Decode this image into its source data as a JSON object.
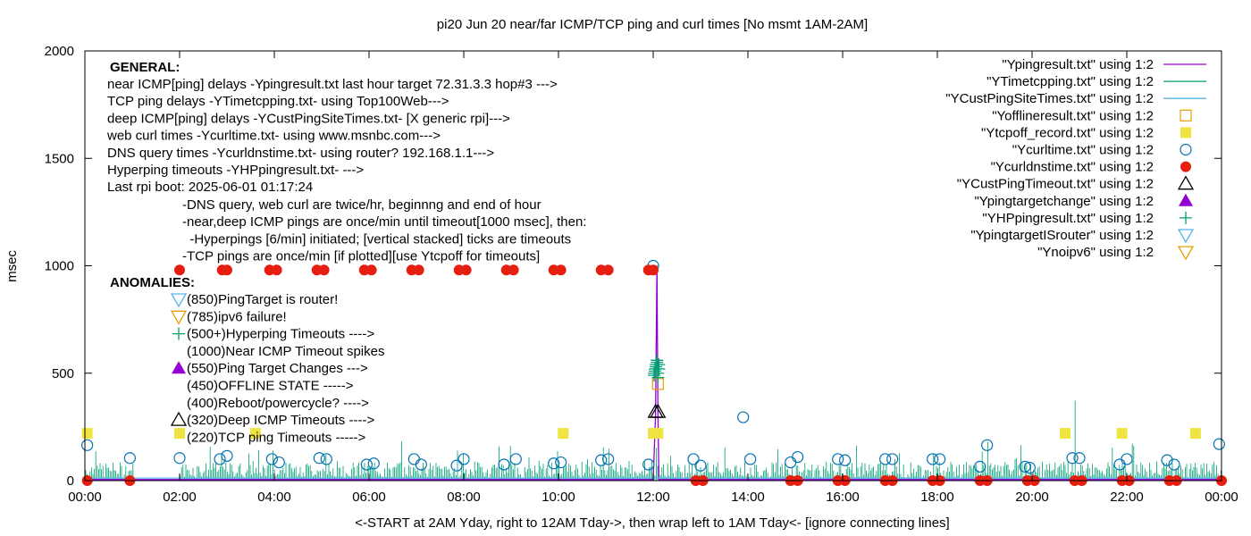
{
  "chart_data": {
    "type": "scatter",
    "title": "pi20 Jun 20  near/far ICMP/TCP ping and curl times [No msmt 1AM-2AM]",
    "xlabel": "<-START at 2AM Yday, right to 12AM Tday->, then wrap left to 1AM Tday<- [ignore connecting lines]",
    "ylabel": "msec",
    "xlim": [
      0,
      24
    ],
    "ylim": [
      0,
      2000
    ],
    "x_ticks": [
      "00:00",
      "02:00",
      "04:00",
      "06:00",
      "08:00",
      "10:00",
      "12:00",
      "14:00",
      "16:00",
      "18:00",
      "20:00",
      "22:00",
      "00:00"
    ],
    "y_ticks": [
      "0",
      "500",
      "1000",
      "1500",
      "2000"
    ],
    "grid": false,
    "legend_position": "top-right",
    "series": [
      {
        "name": "\"Ypingresult.txt\" using 1:2",
        "style": "line",
        "color": "#9400d3",
        "x": [
          0,
          12.0,
          12.05,
          12.08,
          12.1,
          12.12,
          24
        ],
        "y": [
          5,
          5,
          300,
          1000,
          300,
          5,
          5
        ]
      },
      {
        "name": "\"YTimetcpping.txt\" using 1:2",
        "style": "line",
        "color": "#009e73"
      },
      {
        "name": "\"YCustPingSiteTimes.txt\" using 1:2",
        "style": "line",
        "color": "#56b4e9",
        "x": [
          0,
          24
        ],
        "y": [
          12,
          12
        ]
      },
      {
        "name": "\"Yofflineresult.txt\" using 1:2",
        "style": "open-square",
        "color": "#e69f00",
        "x": [
          12.1
        ],
        "y": [
          450
        ]
      },
      {
        "name": "\"Ytcpoff_record.txt\" using 1:2",
        "style": "filled-square",
        "color": "#f0e442",
        "x": [
          0.05,
          2.0,
          3.6,
          10.1,
          12.0,
          12.1,
          20.7,
          21.9,
          23.45
        ],
        "y": [
          220,
          220,
          220,
          220,
          220,
          220,
          220,
          220,
          220
        ]
      },
      {
        "name": "\"Ycurltime.txt\" using 1:2",
        "style": "open-circle",
        "color": "#0072b2",
        "x": [
          0.05,
          0.95,
          2.0,
          2.85,
          3.0,
          3.95,
          4.1,
          4.95,
          5.1,
          5.95,
          6.1,
          6.95,
          7.1,
          7.85,
          8.0,
          8.85,
          9.1,
          9.9,
          10.05,
          10.9,
          11.05,
          11.9,
          12.0,
          12.85,
          13.0,
          13.9,
          14.05,
          14.9,
          15.05,
          15.9,
          16.05,
          16.9,
          17.05,
          17.9,
          18.05,
          18.9,
          19.05,
          19.85,
          19.95,
          20.85,
          21.0,
          21.85,
          22.0,
          22.85,
          23.0,
          23.95
        ],
        "y": [
          165,
          105,
          105,
          100,
          115,
          100,
          85,
          105,
          100,
          75,
          80,
          100,
          75,
          70,
          100,
          75,
          100,
          80,
          85,
          95,
          100,
          75,
          1000,
          100,
          70,
          295,
          100,
          85,
          110,
          100,
          95,
          100,
          100,
          100,
          100,
          65,
          165,
          65,
          60,
          105,
          105,
          75,
          100,
          95,
          75,
          170
        ]
      },
      {
        "name": "\"Ycurldnstime.txt\" using 1:2",
        "style": "filled-circle",
        "color": "#e51e10",
        "x": [
          0.05,
          0.95,
          2.0,
          2.9,
          3.0,
          3.9,
          4.05,
          4.9,
          5.05,
          5.9,
          6.05,
          6.9,
          7.05,
          7.9,
          8.05,
          8.9,
          9.05,
          9.9,
          10.05,
          10.9,
          11.05,
          11.9,
          12.0,
          12.9,
          13.05,
          14.9,
          15.05,
          15.9,
          16.05,
          16.9,
          17.05,
          17.9,
          18.05,
          18.9,
          19.05,
          19.9,
          20.05,
          20.9,
          21.05,
          21.9,
          22.05,
          22.9,
          23.05,
          24.0
        ],
        "y": [
          0,
          0,
          980,
          980,
          980,
          980,
          980,
          980,
          980,
          980,
          980,
          980,
          980,
          980,
          980,
          980,
          980,
          980,
          980,
          980,
          980,
          980,
          980,
          0,
          0,
          0,
          0,
          0,
          0,
          0,
          0,
          0,
          0,
          0,
          0,
          0,
          0,
          0,
          0,
          0,
          0,
          0,
          0,
          0
        ]
      },
      {
        "name": "\"YCustPingTimeout.txt\" using 1:2",
        "style": "open-triangle-up",
        "color": "#000000",
        "x": [
          12.05,
          12.1
        ],
        "y": [
          320,
          320
        ]
      },
      {
        "name": "\"Ypingtargetchange\" using 1:2",
        "style": "filled-triangle-up",
        "color": "#9400d3"
      },
      {
        "name": "\"YHPpingresult.txt\" using 1:2",
        "style": "plus",
        "color": "#009e73",
        "x": [
          12.02,
          12.04,
          12.06,
          12.08,
          12.1,
          12.12,
          12.02,
          12.04,
          12.06,
          12.08,
          12.1,
          12.12
        ],
        "y": [
          500,
          520,
          540,
          560,
          480,
          520,
          490,
          510,
          530,
          550,
          500,
          540
        ]
      },
      {
        "name": "\"YpingtargetISrouter\" using 1:2",
        "style": "open-triangle-down",
        "color": "#56b4e9"
      },
      {
        "name": "\"Ynoipv6\" using 1:2",
        "style": "open-triangle-down",
        "color": "#e69f00"
      }
    ],
    "annotations": {
      "general_header": "GENERAL:",
      "general_lines": [
        "near ICMP[ping] delays -Ypingresult.txt last hour target 72.31.3.3 hop#3 --->",
        "TCP ping delays -YTimetcpping.txt- using Top100Web--->",
        "deep ICMP[ping] delays -YCustPingSiteTimes.txt- [X generic rpi]--->",
        "web curl times -Ycurltime.txt- using www.msnbc.com--->",
        "DNS query times -Ycurldnstime.txt- using router? 192.168.1.1--->",
        "Hyperping timeouts -YHPpingresult.txt- --->",
        "Last rpi boot: 2025-06-01 01:17:24"
      ],
      "notes_lines": [
        "-DNS query, web curl are twice/hr, beginnng and end of hour",
        "-near,deep ICMP pings are once/min until timeout[1000 msec], then:",
        "  -Hyperpings [6/min] initiated; [vertical stacked] ticks are timeouts",
        "-TCP pings are once/min [if plotted][use Ytcpoff for timeouts]"
      ],
      "anomalies_header": "ANOMALIES:",
      "anomaly_lines": [
        {
          "marker": "open-triangle-down",
          "color": "#56b4e9",
          "text": "(850)PingTarget is router!"
        },
        {
          "marker": "open-triangle-down",
          "color": "#e69f00",
          "text": "(785)ipv6 failure!"
        },
        {
          "marker": "plus",
          "color": "#009e73",
          "text": "(500+)Hyperping Timeouts ---->"
        },
        {
          "marker": "none",
          "color": "#000000",
          "text": "(1000)Near ICMP Timeout spikes"
        },
        {
          "marker": "filled-triangle-up",
          "color": "#9400d3",
          "text": "(550)Ping Target Changes --->"
        },
        {
          "marker": "none",
          "color": "#000000",
          "text": "(450)OFFLINE STATE ----->"
        },
        {
          "marker": "none",
          "color": "#000000",
          "text": "(400)Reboot/powercycle? ---->"
        },
        {
          "marker": "open-triangle-up",
          "color": "#000000",
          "text": "(320)Deep ICMP Timeouts ---->"
        },
        {
          "marker": "none",
          "color": "#000000",
          "text": "(220)TCP ping Timeouts ----->"
        }
      ]
    }
  }
}
